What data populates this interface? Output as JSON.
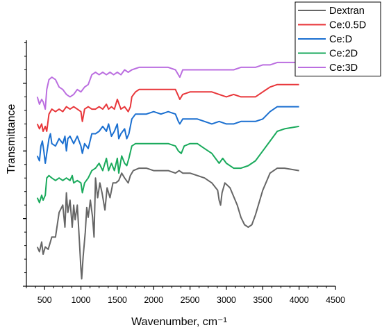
{
  "chart_data": {
    "type": "line",
    "title": "",
    "xlabel": "Wavenumber, cm⁻¹",
    "ylabel": "Transmittance",
    "xlim": [
      250,
      4500
    ],
    "ylim": [
      0,
      100
    ],
    "x_ticks": [
      500,
      1000,
      1500,
      2000,
      2500,
      3000,
      3500,
      4000,
      4500
    ],
    "y_ticks_labeled": false,
    "y_minor_ticks": true,
    "grid": false,
    "legend": {
      "position": "top-right",
      "frame": true
    },
    "series": [
      {
        "name": "Dextran",
        "color": "#666666",
        "points": [
          [
            400,
            16
          ],
          [
            430,
            14
          ],
          [
            460,
            18
          ],
          [
            480,
            13
          ],
          [
            510,
            16
          ],
          [
            550,
            15
          ],
          [
            600,
            20
          ],
          [
            650,
            20
          ],
          [
            700,
            30
          ],
          [
            750,
            33
          ],
          [
            780,
            24
          ],
          [
            800,
            38
          ],
          [
            820,
            30
          ],
          [
            850,
            35
          ],
          [
            880,
            24
          ],
          [
            900,
            33
          ],
          [
            920,
            27
          ],
          [
            950,
            33
          ],
          [
            980,
            18
          ],
          [
            1000,
            7
          ],
          [
            1010,
            3
          ],
          [
            1030,
            12
          ],
          [
            1060,
            22
          ],
          [
            1080,
            32
          ],
          [
            1100,
            28
          ],
          [
            1130,
            35
          ],
          [
            1160,
            28
          ],
          [
            1180,
            20
          ],
          [
            1200,
            44
          ],
          [
            1230,
            36
          ],
          [
            1260,
            42
          ],
          [
            1290,
            38
          ],
          [
            1330,
            31
          ],
          [
            1360,
            40
          ],
          [
            1400,
            36
          ],
          [
            1440,
            42
          ],
          [
            1480,
            42
          ],
          [
            1520,
            43
          ],
          [
            1560,
            46
          ],
          [
            1600,
            44
          ],
          [
            1650,
            42
          ],
          [
            1680,
            45
          ],
          [
            1720,
            47
          ],
          [
            1800,
            48
          ],
          [
            1900,
            48
          ],
          [
            2000,
            47
          ],
          [
            2100,
            47
          ],
          [
            2200,
            47
          ],
          [
            2300,
            46
          ],
          [
            2350,
            47
          ],
          [
            2400,
            46
          ],
          [
            2500,
            46
          ],
          [
            2600,
            45
          ],
          [
            2700,
            44
          ],
          [
            2800,
            42
          ],
          [
            2880,
            39
          ],
          [
            2900,
            35
          ],
          [
            2920,
            33
          ],
          [
            2940,
            38
          ],
          [
            2980,
            42
          ],
          [
            3050,
            40
          ],
          [
            3150,
            33
          ],
          [
            3200,
            28
          ],
          [
            3250,
            25
          ],
          [
            3300,
            24
          ],
          [
            3350,
            25
          ],
          [
            3400,
            29
          ],
          [
            3500,
            39
          ],
          [
            3600,
            46
          ],
          [
            3700,
            48
          ],
          [
            3800,
            48
          ],
          [
            4000,
            47
          ]
        ]
      },
      {
        "name": "Ce:0.5D",
        "color": "#e8363a",
        "points": [
          [
            400,
            66
          ],
          [
            430,
            64
          ],
          [
            460,
            66
          ],
          [
            480,
            63
          ],
          [
            510,
            65
          ],
          [
            530,
            63
          ],
          [
            560,
            70
          ],
          [
            600,
            72
          ],
          [
            650,
            71
          ],
          [
            700,
            72
          ],
          [
            750,
            71
          ],
          [
            800,
            73
          ],
          [
            850,
            72
          ],
          [
            900,
            73
          ],
          [
            950,
            72
          ],
          [
            1000,
            71
          ],
          [
            1020,
            67
          ],
          [
            1050,
            72
          ],
          [
            1100,
            73
          ],
          [
            1150,
            72
          ],
          [
            1200,
            72
          ],
          [
            1250,
            73
          ],
          [
            1300,
            72
          ],
          [
            1350,
            74
          ],
          [
            1380,
            72
          ],
          [
            1420,
            73
          ],
          [
            1460,
            72
          ],
          [
            1500,
            76
          ],
          [
            1550,
            72
          ],
          [
            1600,
            73
          ],
          [
            1650,
            71
          ],
          [
            1680,
            73
          ],
          [
            1700,
            77
          ],
          [
            1750,
            79
          ],
          [
            1800,
            80
          ],
          [
            1900,
            80
          ],
          [
            2000,
            80
          ],
          [
            2100,
            80
          ],
          [
            2200,
            80
          ],
          [
            2300,
            80
          ],
          [
            2330,
            78
          ],
          [
            2360,
            76
          ],
          [
            2400,
            78
          ],
          [
            2500,
            79
          ],
          [
            2600,
            79
          ],
          [
            2700,
            79
          ],
          [
            2800,
            79
          ],
          [
            2900,
            78
          ],
          [
            3000,
            77
          ],
          [
            3100,
            78
          ],
          [
            3200,
            77
          ],
          [
            3300,
            77
          ],
          [
            3400,
            77
          ],
          [
            3500,
            79
          ],
          [
            3600,
            81
          ],
          [
            3700,
            82
          ],
          [
            3800,
            82
          ],
          [
            4000,
            82
          ]
        ]
      },
      {
        "name": "Ce:D",
        "color": "#1a6fd0",
        "points": [
          [
            400,
            53
          ],
          [
            430,
            51
          ],
          [
            450,
            57
          ],
          [
            470,
            59
          ],
          [
            490,
            55
          ],
          [
            510,
            50
          ],
          [
            530,
            54
          ],
          [
            560,
            60
          ],
          [
            580,
            62
          ],
          [
            600,
            58
          ],
          [
            650,
            57
          ],
          [
            700,
            60
          ],
          [
            750,
            58
          ],
          [
            780,
            61
          ],
          [
            800,
            55
          ],
          [
            820,
            60
          ],
          [
            850,
            61
          ],
          [
            900,
            58
          ],
          [
            950,
            61
          ],
          [
            1000,
            57
          ],
          [
            1020,
            54
          ],
          [
            1050,
            58
          ],
          [
            1100,
            56
          ],
          [
            1150,
            62
          ],
          [
            1200,
            62
          ],
          [
            1250,
            63
          ],
          [
            1300,
            65
          ],
          [
            1350,
            63
          ],
          [
            1380,
            66
          ],
          [
            1420,
            61
          ],
          [
            1460,
            63
          ],
          [
            1500,
            66
          ],
          [
            1520,
            60
          ],
          [
            1550,
            62
          ],
          [
            1600,
            64
          ],
          [
            1630,
            60
          ],
          [
            1660,
            62
          ],
          [
            1700,
            68
          ],
          [
            1750,
            70
          ],
          [
            1800,
            70
          ],
          [
            1900,
            70
          ],
          [
            2000,
            71
          ],
          [
            2100,
            70
          ],
          [
            2200,
            71
          ],
          [
            2300,
            70
          ],
          [
            2340,
            67
          ],
          [
            2360,
            66
          ],
          [
            2400,
            68
          ],
          [
            2500,
            68
          ],
          [
            2600,
            68
          ],
          [
            2700,
            67
          ],
          [
            2800,
            66
          ],
          [
            2900,
            67
          ],
          [
            3000,
            66
          ],
          [
            3100,
            66
          ],
          [
            3200,
            67
          ],
          [
            3300,
            67
          ],
          [
            3400,
            67
          ],
          [
            3500,
            68
          ],
          [
            3600,
            71
          ],
          [
            3700,
            73
          ],
          [
            3800,
            73
          ],
          [
            4000,
            73
          ]
        ]
      },
      {
        "name": "Ce:2D",
        "color": "#1aaa5c",
        "points": [
          [
            400,
            36
          ],
          [
            430,
            34
          ],
          [
            460,
            37
          ],
          [
            480,
            35
          ],
          [
            510,
            37
          ],
          [
            530,
            44
          ],
          [
            560,
            45
          ],
          [
            600,
            44
          ],
          [
            650,
            43
          ],
          [
            700,
            44
          ],
          [
            750,
            43
          ],
          [
            800,
            44
          ],
          [
            850,
            43
          ],
          [
            880,
            45
          ],
          [
            900,
            42
          ],
          [
            950,
            43
          ],
          [
            1000,
            42
          ],
          [
            1020,
            38
          ],
          [
            1050,
            42
          ],
          [
            1100,
            44
          ],
          [
            1150,
            47
          ],
          [
            1200,
            48
          ],
          [
            1250,
            50
          ],
          [
            1300,
            47
          ],
          [
            1350,
            52
          ],
          [
            1380,
            47
          ],
          [
            1420,
            50
          ],
          [
            1460,
            47
          ],
          [
            1500,
            52
          ],
          [
            1520,
            46
          ],
          [
            1560,
            53
          ],
          [
            1600,
            50
          ],
          [
            1630,
            49
          ],
          [
            1660,
            52
          ],
          [
            1700,
            57
          ],
          [
            1750,
            58
          ],
          [
            1800,
            58
          ],
          [
            1900,
            58
          ],
          [
            2000,
            58
          ],
          [
            2100,
            58
          ],
          [
            2200,
            58
          ],
          [
            2300,
            57
          ],
          [
            2340,
            55
          ],
          [
            2380,
            54
          ],
          [
            2420,
            57
          ],
          [
            2500,
            58
          ],
          [
            2600,
            58
          ],
          [
            2700,
            56
          ],
          [
            2800,
            54
          ],
          [
            2850,
            52
          ],
          [
            2900,
            50
          ],
          [
            2950,
            52
          ],
          [
            3000,
            50
          ],
          [
            3100,
            48
          ],
          [
            3200,
            48
          ],
          [
            3300,
            49
          ],
          [
            3400,
            51
          ],
          [
            3500,
            55
          ],
          [
            3600,
            59
          ],
          [
            3700,
            63
          ],
          [
            3800,
            64
          ],
          [
            4000,
            65
          ]
        ]
      },
      {
        "name": "Ce:3D",
        "color": "#bb6ee0",
        "points": [
          [
            400,
            77
          ],
          [
            430,
            74
          ],
          [
            460,
            76
          ],
          [
            480,
            75
          ],
          [
            510,
            72
          ],
          [
            530,
            80
          ],
          [
            560,
            84
          ],
          [
            600,
            85
          ],
          [
            650,
            84
          ],
          [
            700,
            81
          ],
          [
            750,
            80
          ],
          [
            800,
            78
          ],
          [
            850,
            77
          ],
          [
            900,
            78
          ],
          [
            950,
            80
          ],
          [
            1000,
            79
          ],
          [
            1050,
            81
          ],
          [
            1100,
            82
          ],
          [
            1150,
            86
          ],
          [
            1200,
            87
          ],
          [
            1250,
            86
          ],
          [
            1300,
            87
          ],
          [
            1350,
            86
          ],
          [
            1400,
            87
          ],
          [
            1450,
            86
          ],
          [
            1500,
            87
          ],
          [
            1550,
            86
          ],
          [
            1600,
            88
          ],
          [
            1650,
            87
          ],
          [
            1700,
            88
          ],
          [
            1800,
            89
          ],
          [
            1900,
            89
          ],
          [
            2000,
            89
          ],
          [
            2100,
            89
          ],
          [
            2200,
            89
          ],
          [
            2300,
            88
          ],
          [
            2340,
            86
          ],
          [
            2360,
            85
          ],
          [
            2400,
            88
          ],
          [
            2500,
            88
          ],
          [
            2600,
            88
          ],
          [
            2700,
            88
          ],
          [
            2800,
            88
          ],
          [
            2900,
            88
          ],
          [
            3000,
            88
          ],
          [
            3100,
            88
          ],
          [
            3200,
            89
          ],
          [
            3300,
            89
          ],
          [
            3400,
            89
          ],
          [
            3500,
            90
          ],
          [
            3600,
            90
          ],
          [
            3700,
            91
          ],
          [
            3800,
            91
          ],
          [
            4000,
            91
          ]
        ]
      }
    ]
  }
}
